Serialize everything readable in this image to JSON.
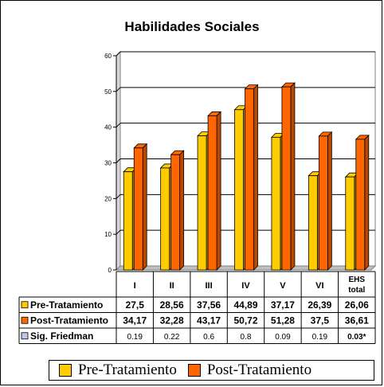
{
  "chart_data": {
    "type": "bar",
    "title": "Habilidades Sociales",
    "categories": [
      "I",
      "II",
      "III",
      "IV",
      "V",
      "VI",
      "EHS total"
    ],
    "series": [
      {
        "name": "Pre-Tratamiento",
        "color": "#FFCC00",
        "values": [
          27.5,
          28.56,
          37.56,
          44.89,
          37.17,
          26.39,
          26.06
        ],
        "labels": [
          "27,5",
          "28,56",
          "37,56",
          "44,89",
          "37,17",
          "26,39",
          "26,06"
        ]
      },
      {
        "name": "Post-Tratamiento",
        "color": "#FF6600",
        "values": [
          34.17,
          32.28,
          43.17,
          50.72,
          51.28,
          37.5,
          36.61
        ],
        "labels": [
          "34,17",
          "32,28",
          "43,17",
          "50,72",
          "51,28",
          "37,5",
          "36,61"
        ]
      },
      {
        "name": "Sig. Friedman",
        "color": "#C0C8E8",
        "values": [
          0.19,
          0.22,
          0.6,
          0.8,
          0.09,
          0.19,
          0.03
        ],
        "labels": [
          "0.19",
          "0.22",
          "0.6",
          "0.8",
          "0.09",
          "0.19",
          "0.03*"
        ]
      }
    ],
    "ylim": [
      0,
      60
    ],
    "yticks": [
      0,
      10,
      20,
      30,
      40,
      50,
      60
    ],
    "grid": true,
    "legend": "bottom"
  }
}
